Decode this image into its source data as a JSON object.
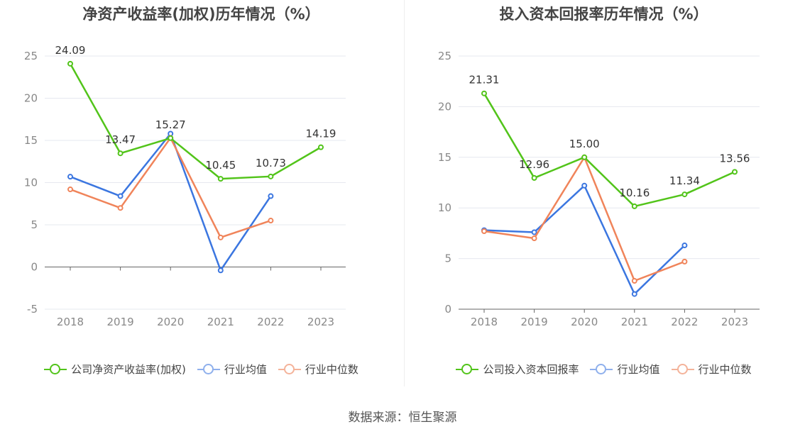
{
  "colors": {
    "company": "#52c41a",
    "industry_avg": "#3b76e0",
    "industry_median": "#f0845a",
    "legend_avg": "#8fb0ec",
    "legend_median": "#f4b39a"
  },
  "source": "数据来源：恒生聚源",
  "chart_data": [
    {
      "type": "line",
      "title": "净资产收益率(加权)历年情况（%）",
      "categories": [
        "2018",
        "2019",
        "2020",
        "2021",
        "2022",
        "2023"
      ],
      "ylim": [
        -5,
        25
      ],
      "yticks": [
        "-5",
        "0",
        "5",
        "10",
        "15",
        "20",
        "25"
      ],
      "grid": true,
      "legend_position": "bottom",
      "series": [
        {
          "name": "公司净资产收益率(加权)",
          "values": [
            24.09,
            13.47,
            15.27,
            10.45,
            10.73,
            14.19
          ],
          "labels": [
            "24.09",
            "13.47",
            "15.27",
            "10.45",
            "10.73",
            "14.19"
          ]
        },
        {
          "name": "行业均值",
          "values": [
            10.7,
            8.4,
            15.8,
            -0.4,
            8.4,
            null
          ]
        },
        {
          "name": "行业中位数",
          "values": [
            9.2,
            7.0,
            15.3,
            3.5,
            5.5,
            null
          ]
        }
      ]
    },
    {
      "type": "line",
      "title": "投入资本回报率历年情况（%）",
      "categories": [
        "2018",
        "2019",
        "2020",
        "2021",
        "2022",
        "2023"
      ],
      "ylim": [
        0,
        25
      ],
      "yticks": [
        "0",
        "5",
        "10",
        "15",
        "20",
        "25"
      ],
      "grid": true,
      "legend_position": "bottom",
      "series": [
        {
          "name": "公司投入资本回报率",
          "values": [
            21.31,
            12.96,
            15.0,
            10.16,
            11.34,
            13.56
          ],
          "labels": [
            "21.31",
            "12.96",
            "15.00",
            "10.16",
            "11.34",
            "13.56"
          ]
        },
        {
          "name": "行业均值",
          "values": [
            7.8,
            7.6,
            12.2,
            1.5,
            6.3,
            null
          ]
        },
        {
          "name": "行业中位数",
          "values": [
            7.7,
            7.0,
            15.0,
            2.8,
            4.7,
            null
          ]
        }
      ]
    }
  ]
}
